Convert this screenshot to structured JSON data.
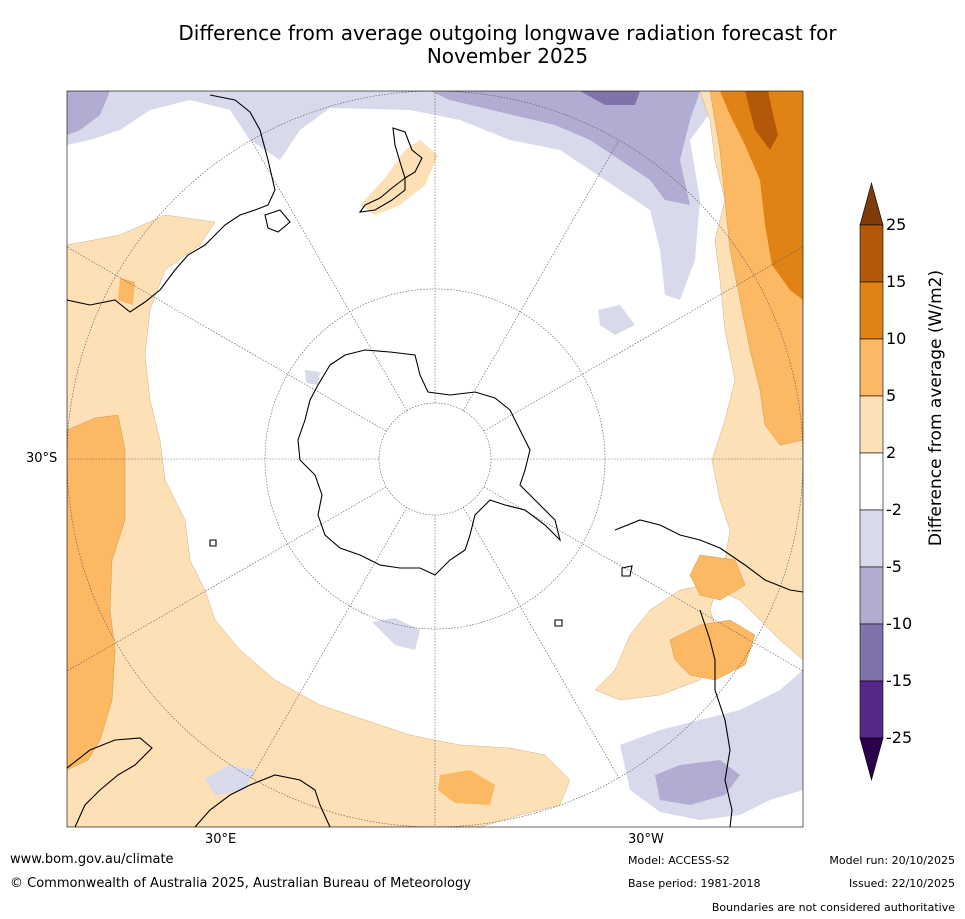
{
  "title_line1": "Difference from average outgoing longwave radiation forecast for",
  "title_line2": "November 2025",
  "colorbar": {
    "title": "Difference from average (W/m2)",
    "tick_labels": [
      "25",
      "15",
      "10",
      "5",
      "2",
      "-2",
      "-5",
      "-10",
      "-15",
      "-25"
    ],
    "bins": [
      {
        "range": ">25",
        "color": "#7f3b08"
      },
      {
        "range": "15-25",
        "color": "#b35806"
      },
      {
        "range": "10-15",
        "color": "#e08214"
      },
      {
        "range": "5-10",
        "color": "#fdb863"
      },
      {
        "range": "2-5",
        "color": "#fee0b6"
      },
      {
        "range": "-2-2",
        "color": "#ffffff"
      },
      {
        "range": "-5--2",
        "color": "#d8daeb"
      },
      {
        "range": "-10--5",
        "color": "#b2abd2"
      },
      {
        "range": "-15--10",
        "color": "#8073ac"
      },
      {
        "range": "-25--15",
        "color": "#542788"
      },
      {
        "range": "<-25",
        "color": "#2d004b"
      }
    ]
  },
  "map_labels": {
    "lat_30s": "30°S",
    "lon_30e": "30°E",
    "lon_30w": "30°W"
  },
  "footer": {
    "website": "www.bom.gov.au/climate",
    "copyright": "© Commonwealth of Australia 2025, Australian Bureau of Meteorology",
    "model": "Model: ACCESS-S2",
    "base_period": "Base period: 1981-2018",
    "model_run": "Model run: 20/10/2025",
    "issued": "Issued: 22/10/2025",
    "disclaimer": "Boundaries are not considered authoritative"
  }
}
